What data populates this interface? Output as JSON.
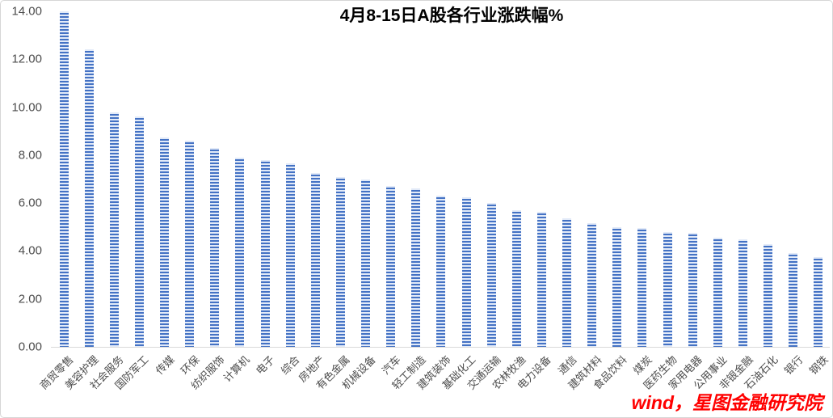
{
  "chart": {
    "title": "4月8-15日A股各行业涨跌幅%",
    "watermark": "wind，星图金融研究院",
    "colors": {
      "bar_blue": "#4472c4",
      "bar_stripe_light": "#e2eaf8",
      "axis_text": "#4d4d4d",
      "axis_line": "#d9d9d9",
      "chart_border": "#d6d6d6",
      "title_text": "#000000",
      "watermark_red": "#ff0000"
    }
  },
  "chart_data": {
    "type": "bar",
    "title": "4月8-15日A股各行业涨跌幅%",
    "xlabel": "",
    "ylabel": "",
    "ylim": [
      0,
      14
    ],
    "ytick_step": 2,
    "ytick_labels": [
      "0.00",
      "2.00",
      "4.00",
      "6.00",
      "8.00",
      "10.00",
      "12.00",
      "14.00"
    ],
    "grid": false,
    "legend": false,
    "bar_style": "horizontal-striped-blue",
    "annotations": [
      "wind，星图金融研究院"
    ],
    "categories": [
      "商贸零售",
      "美容护理",
      "社会服务",
      "国防军工",
      "传媒",
      "环保",
      "纺织服饰",
      "计算机",
      "电子",
      "综合",
      "房地产",
      "有色金属",
      "机械设备",
      "汽车",
      "轻工制造",
      "建筑装饰",
      "基础化工",
      "交通运输",
      "农林牧渔",
      "电力设备",
      "通信",
      "建筑材料",
      "食品饮料",
      "煤炭",
      "医药生物",
      "家用电器",
      "公用事业",
      "非银金融",
      "石油石化",
      "银行",
      "钢铁"
    ],
    "values": [
      14.0,
      12.4,
      9.8,
      9.6,
      8.75,
      8.6,
      8.3,
      7.9,
      7.8,
      7.65,
      7.25,
      7.1,
      7.0,
      6.7,
      6.6,
      6.3,
      6.25,
      6.0,
      5.7,
      5.65,
      5.35,
      5.15,
      5.0,
      4.95,
      4.8,
      4.75,
      4.55,
      4.5,
      4.3,
      3.9,
      3.75
    ]
  }
}
